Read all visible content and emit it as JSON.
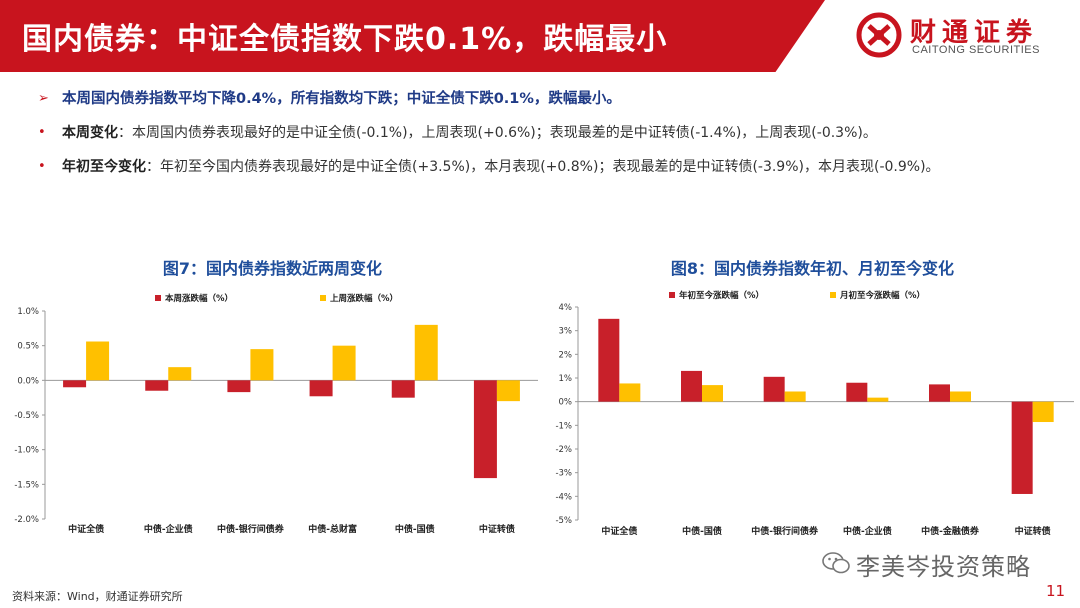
{
  "header": {
    "title": "国内债券：中证全债指数下跌0.1%，跌幅最小",
    "logo_cn": "财通证券",
    "logo_en": "CAITONG SECURITIES"
  },
  "bullets": {
    "headline": "本周国内债券指数平均下降0.4%，所有指数均下跌；中证全债下跌0.1%，跌幅最小。",
    "weekly_label": "本周变化",
    "weekly_text": "：本周国内债券表现最好的是中证全债(-0.1%)，上周表现(+0.6%)；表现最差的是中证转债(-1.4%)，上周表现(-0.3%)。",
    "ytd_label": "年初至今变化",
    "ytd_text": "：年初至今国内债券表现最好的是中证全债(+3.5%)，本月表现(+0.8%)；表现最差的是中证转债(-3.9%)，本月表现(-0.9%)。"
  },
  "chart7": {
    "title": "图7：国内债券指数近两周变化"
  },
  "chart8": {
    "title": "图8：国内债券指数年初、月初至今变化"
  },
  "footer": {
    "source": "资料来源：Wind，财通证券研究所",
    "watermark": "李美岑投资策略",
    "page_number": "11"
  },
  "colors": {
    "brand_red": "#c8141e",
    "series_red": "#c8202a",
    "series_yellow": "#ffc000",
    "title_blue": "#1f4e9b"
  },
  "chart_data": [
    {
      "type": "bar",
      "categories": [
        "中证全债",
        "中债-企业债",
        "中债-银行间债券",
        "中债-总财富",
        "中债-国债",
        "中证转债"
      ],
      "series": [
        {
          "name": "本周涨跌幅（%）",
          "values": [
            -0.1,
            -0.15,
            -0.17,
            -0.23,
            -0.25,
            -1.41
          ]
        },
        {
          "name": "上周涨跌幅（%）",
          "values": [
            0.56,
            0.19,
            0.45,
            0.5,
            0.8,
            -0.3
          ]
        }
      ],
      "yticks": [
        "1.0%",
        "0.5%",
        "0.0%",
        "-0.5%",
        "-1.0%",
        "-1.5%",
        "-2.0%"
      ],
      "ylim": [
        -2.0,
        1.0
      ],
      "legend": "top"
    },
    {
      "type": "bar",
      "categories": [
        "中证全债",
        "中债-国债",
        "中债-银行间债券",
        "中债-企业债",
        "中债-金融债券",
        "中证转债"
      ],
      "series": [
        {
          "name": "年初至今涨跌幅（%）",
          "values": [
            3.5,
            1.3,
            1.05,
            0.8,
            0.73,
            -3.9
          ]
        },
        {
          "name": "月初至今涨跌幅（%）",
          "values": [
            0.77,
            0.7,
            0.43,
            0.17,
            0.43,
            -0.86
          ]
        }
      ],
      "yticks": [
        "4%",
        "3%",
        "2%",
        "1%",
        "0%",
        "-1%",
        "-2%",
        "-3%",
        "-4%",
        "-5%"
      ],
      "ylim": [
        -5,
        4
      ],
      "legend": "top"
    }
  ]
}
